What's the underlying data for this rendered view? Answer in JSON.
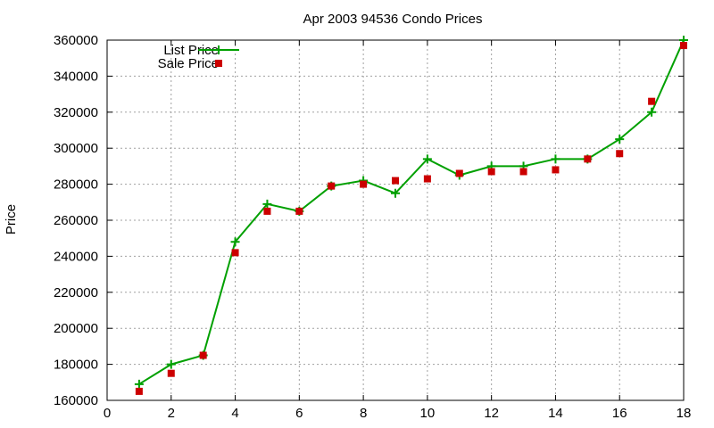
{
  "chart_data": {
    "type": "line",
    "title": "Apr 2003 94536 Condo Prices",
    "xlabel": "",
    "ylabel": "Price",
    "xlim": [
      0,
      18
    ],
    "ylim": [
      160000,
      360000
    ],
    "xticks": [
      0,
      2,
      4,
      6,
      8,
      10,
      12,
      14,
      16,
      18
    ],
    "yticks": [
      160000,
      180000,
      200000,
      220000,
      240000,
      260000,
      280000,
      300000,
      320000,
      340000,
      360000
    ],
    "grid": true,
    "legend_position": "top-left",
    "series": [
      {
        "name": "List Price",
        "style": "line-with-plus-markers",
        "color": "#00a000",
        "x": [
          1,
          2,
          3,
          4,
          5,
          6,
          7,
          8,
          9,
          10,
          11,
          12,
          13,
          14,
          15,
          16,
          17,
          18
        ],
        "y": [
          169000,
          180000,
          185000,
          248000,
          269000,
          265000,
          279000,
          282000,
          275000,
          294000,
          285000,
          290000,
          290000,
          294000,
          294000,
          305000,
          320000,
          360000
        ]
      },
      {
        "name": "Sale Price",
        "style": "square-markers",
        "color": "#cc0000",
        "x": [
          1,
          2,
          3,
          4,
          5,
          6,
          7,
          8,
          9,
          10,
          11,
          12,
          13,
          14,
          15,
          16,
          17,
          18
        ],
        "y": [
          165000,
          175000,
          185000,
          242000,
          265000,
          265000,
          279000,
          280000,
          282000,
          283000,
          286000,
          287000,
          287000,
          288000,
          294000,
          297000,
          326000,
          357000
        ]
      }
    ]
  }
}
